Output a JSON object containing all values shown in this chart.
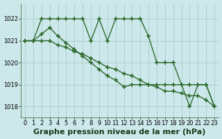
{
  "background_color": "#cce8ea",
  "grid_color": "#aacccc",
  "line_color": "#2d6a2d",
  "line_width": 1.0,
  "marker": "+",
  "marker_size": 4,
  "marker_edge_width": 1.2,
  "xlabel": "Graphe pression niveau de la mer (hPa)",
  "xlabel_fontsize": 8,
  "xlabel_fontweight": "bold",
  "ylim": [
    1017.5,
    1022.7
  ],
  "xlim": [
    -0.5,
    23.5
  ],
  "yticks": [
    1018,
    1019,
    1020,
    1021,
    1022
  ],
  "xticks": [
    0,
    1,
    2,
    3,
    4,
    5,
    6,
    7,
    8,
    9,
    10,
    11,
    12,
    13,
    14,
    15,
    16,
    17,
    18,
    19,
    20,
    21,
    22,
    23
  ],
  "tick_fontsize": 6,
  "series": [
    {
      "x": [
        0,
        1,
        2,
        3,
        4,
        5,
        6,
        7,
        8,
        9,
        10,
        11,
        12,
        13,
        14,
        15,
        16,
        17,
        18,
        19,
        20,
        21,
        22,
        23
      ],
      "y": [
        1021.0,
        1021.0,
        1022.0,
        1022.0,
        1022.0,
        1022.0,
        1022.0,
        1022.0,
        1021.0,
        1022.0,
        1021.0,
        1022.0,
        1022.0,
        1022.0,
        1022.0,
        1021.2,
        1020.0,
        1020.0,
        1020.0,
        1019.0,
        1019.0,
        1019.0,
        1019.0,
        1018.0
      ]
    },
    {
      "x": [
        0,
        1,
        2,
        3,
        4,
        5,
        6,
        7,
        8,
        9,
        10,
        11,
        12,
        13,
        14,
        15,
        16,
        17,
        18,
        19,
        20,
        21,
        22,
        23
      ],
      "y": [
        1021.0,
        1021.0,
        1021.0,
        1021.0,
        1020.8,
        1020.7,
        1020.5,
        1020.4,
        1020.2,
        1020.0,
        1019.8,
        1019.7,
        1019.5,
        1019.4,
        1019.2,
        1019.0,
        1018.9,
        1018.7,
        1018.7,
        1018.6,
        1018.5,
        1018.5,
        1018.3,
        1018.0
      ]
    },
    {
      "x": [
        0,
        1,
        2,
        3,
        4,
        5,
        6,
        7,
        8,
        9,
        10,
        11,
        12,
        13,
        14,
        15,
        16,
        17,
        18,
        19,
        20,
        21,
        22,
        23
      ],
      "y": [
        1021.0,
        1021.0,
        1021.3,
        1021.6,
        1021.2,
        1020.9,
        1020.6,
        1020.3,
        1020.0,
        1019.7,
        1019.4,
        1019.2,
        1018.9,
        1019.0,
        1019.0,
        1019.0,
        1019.0,
        1019.0,
        1019.0,
        1019.0,
        1018.0,
        1019.0,
        1019.0,
        1018.0
      ]
    }
  ]
}
